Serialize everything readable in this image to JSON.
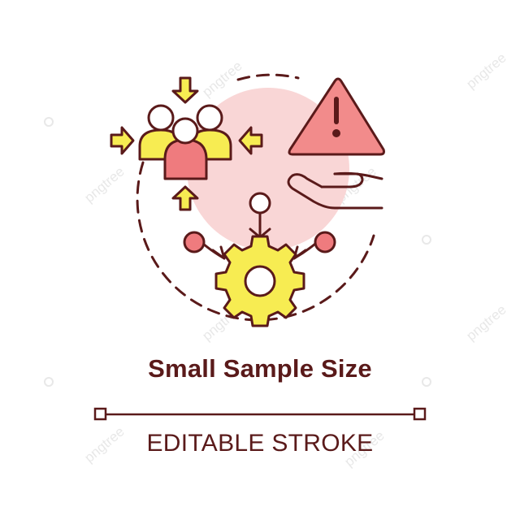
{
  "title": "Small Sample Size",
  "subtitle": "EDITABLE STROKE",
  "watermark_text": "pngtree",
  "colors": {
    "stroke": "#5a1a1a",
    "yellow": "#f7ec52",
    "pink": "#ef7b7e",
    "light_pink": "#f9d6d6",
    "warning_fill": "#f28b8b",
    "watermark": "#e6e6e6"
  },
  "icons": [
    "people-group-icon",
    "arrow-icons",
    "warning-triangle-icon",
    "open-hand-icon",
    "gear-icon",
    "node-icons"
  ]
}
